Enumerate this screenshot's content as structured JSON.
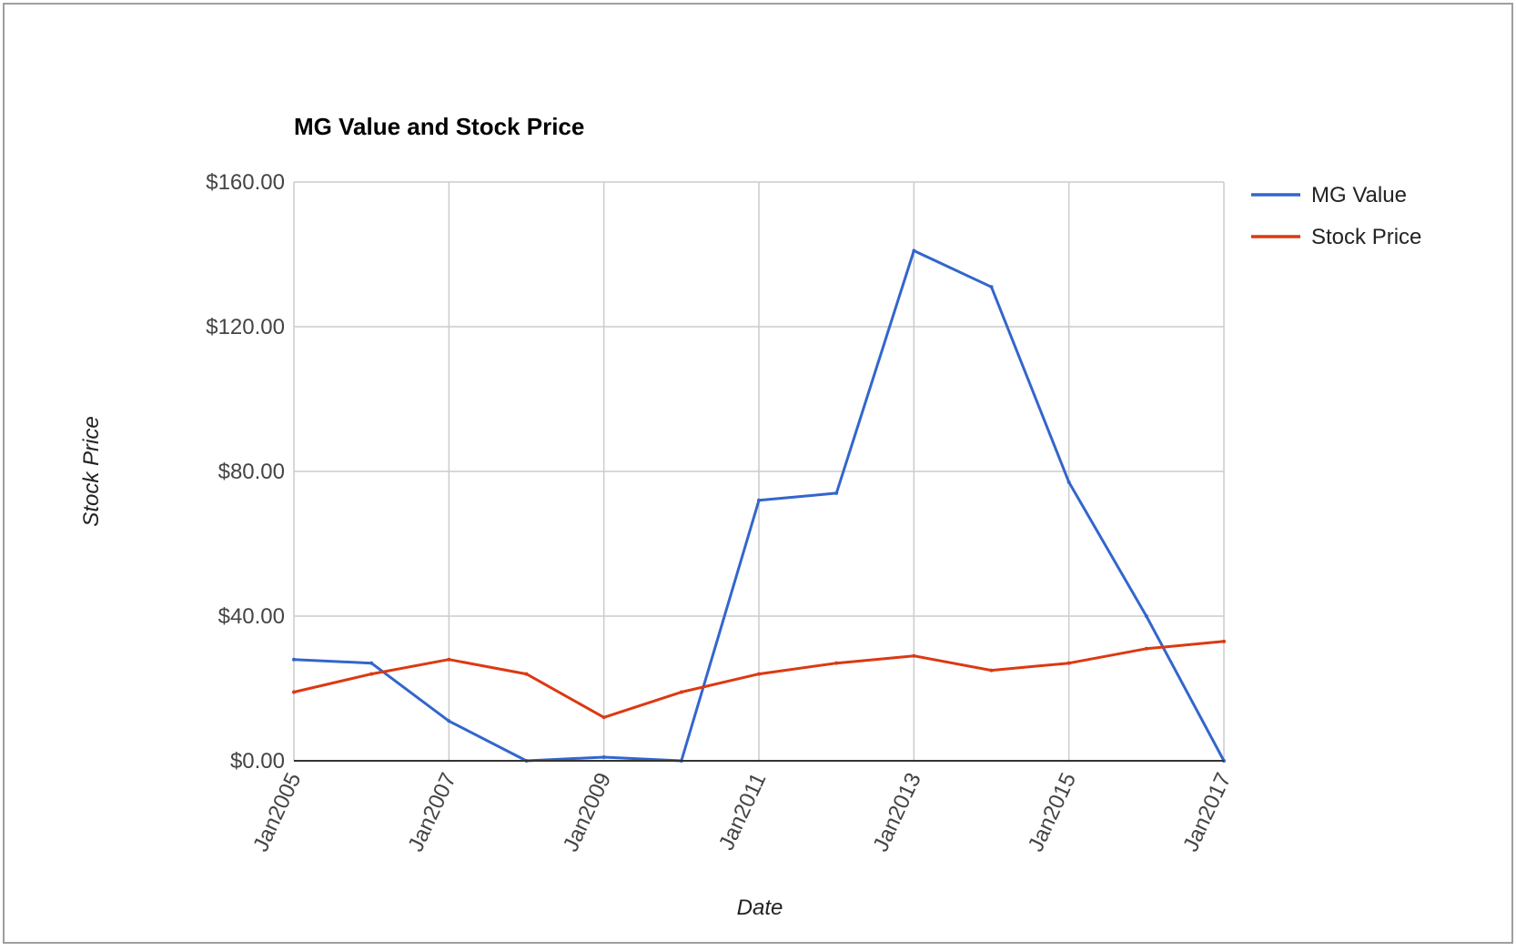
{
  "chart_data": {
    "type": "line",
    "title": "MG Value and Stock Price",
    "xlabel": "Date",
    "ylabel": "Stock Price",
    "x": [
      "Jan2005",
      "Jan2006",
      "Jan2007",
      "Jan2008",
      "Jan2009",
      "Jan2010",
      "Jan2011",
      "Jan2012",
      "Jan2013",
      "Jan2014",
      "Jan2015",
      "Jan2016",
      "Jan2017"
    ],
    "x_tick_labels": [
      "Jan2005",
      "Jan2007",
      "Jan2009",
      "Jan2011",
      "Jan2013",
      "Jan2015",
      "Jan2017"
    ],
    "y_tick_labels": [
      "$0.00",
      "$40.00",
      "$80.00",
      "$120.00",
      "$160.00"
    ],
    "ylim": [
      0,
      160
    ],
    "grid": true,
    "legend_position": "right",
    "series": [
      {
        "name": "MG Value",
        "color": "#3366cc",
        "values": [
          28,
          27,
          11,
          0,
          1,
          0,
          72,
          74,
          141,
          131,
          77,
          40,
          0
        ]
      },
      {
        "name": "Stock Price",
        "color": "#dc3912",
        "values": [
          19,
          24,
          28,
          24,
          12,
          19,
          24,
          27,
          29,
          25,
          27,
          31,
          33
        ]
      }
    ]
  }
}
